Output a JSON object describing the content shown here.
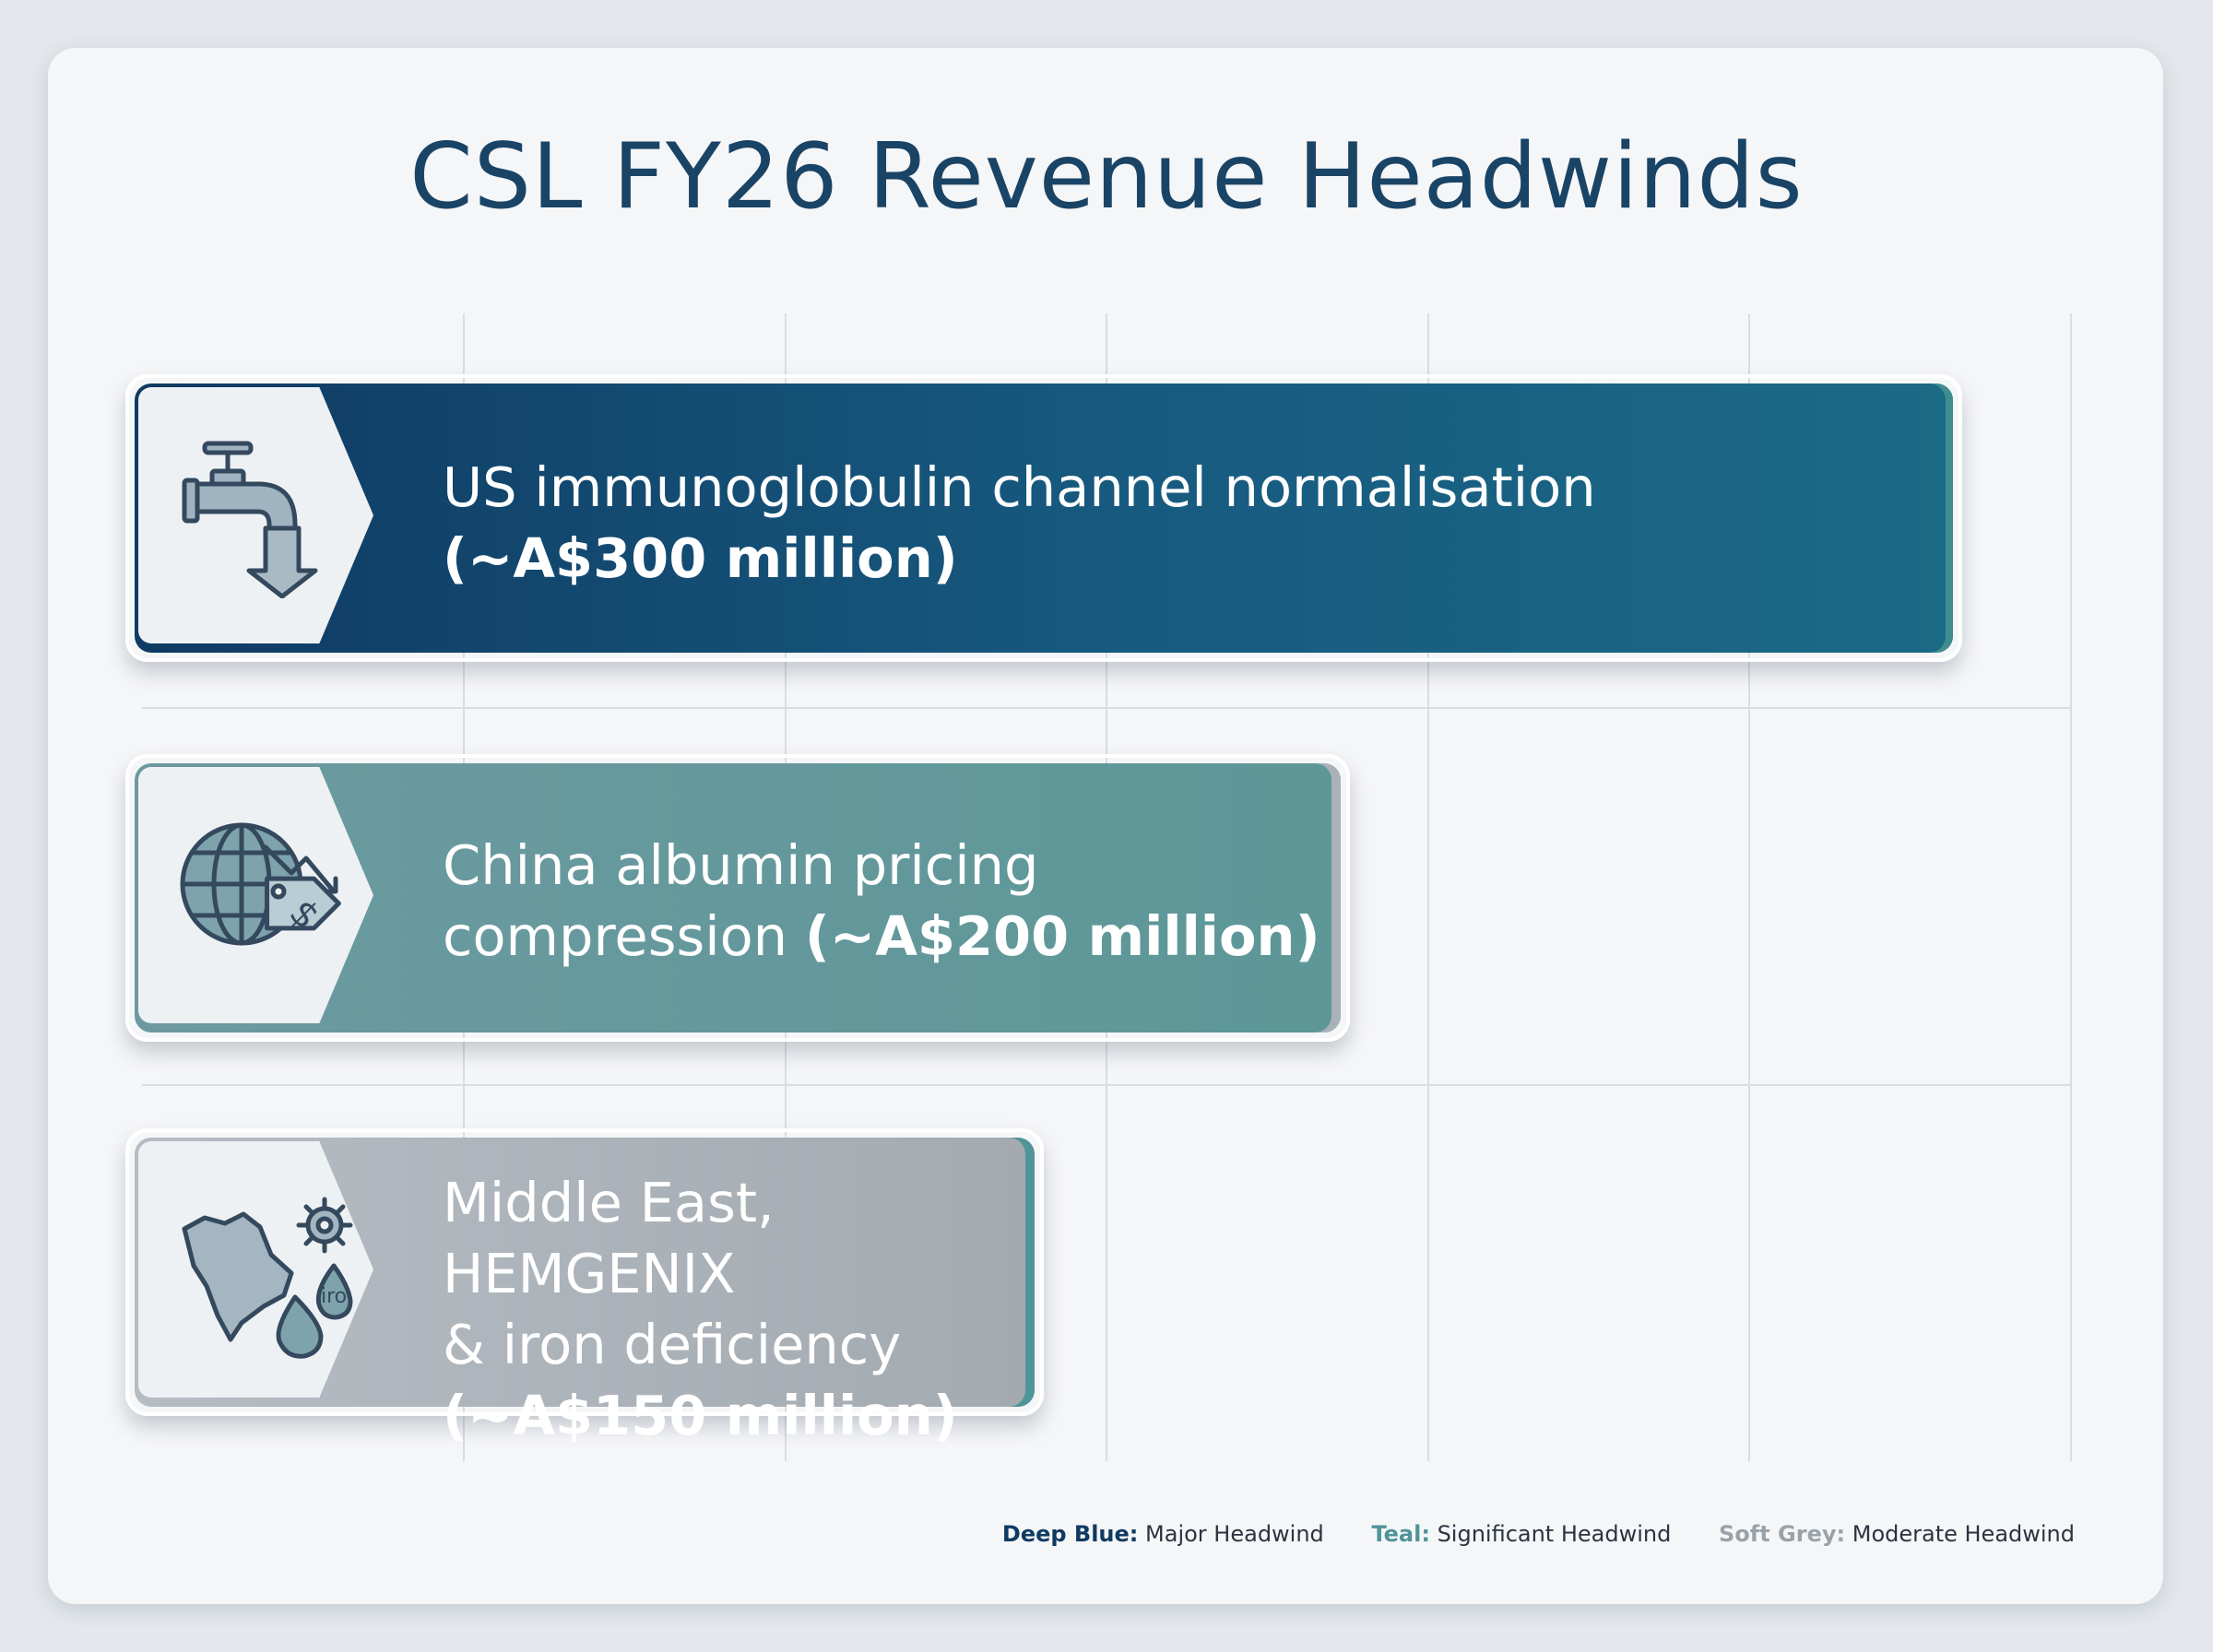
{
  "title": "CSL FY26 Revenue Headwinds",
  "chart_data": {
    "type": "bar",
    "orientation": "horizontal",
    "title": "CSL FY26 Revenue Headwinds",
    "categories": [
      "US immunoglobulin channel normalisation",
      "China albumin pricing compression",
      "Middle East, HEMGENIX & iron deficiency"
    ],
    "values": [
      300,
      200,
      150
    ],
    "value_labels": [
      "(~A$300 million)",
      "(~A$200 million)",
      "(~A$150 million)"
    ],
    "unit": "A$ million",
    "grid": true,
    "legend_position": "bottom-right"
  },
  "bars": [
    {
      "text_lines": [
        "US immunoglobulin channel normalisation"
      ],
      "amount": "(~A$300 million)",
      "amount_inline": false,
      "icon": "faucet-down-arrow-icon",
      "tier_color": "#0f3a62"
    },
    {
      "text_lines": [
        "China albumin pricing",
        "compression "
      ],
      "amount": "(~A$200 million)",
      "amount_inline": true,
      "icon": "globe-price-tag-icon",
      "tier_color": "#5d9798"
    },
    {
      "text_lines": [
        "Middle East, HEMGENIX",
        "& iron deficiency"
      ],
      "amount": "(~A$150 million)",
      "amount_inline": false,
      "icon": "map-gear-drop-icon",
      "tier_color": "#a3aab0"
    }
  ],
  "legend": [
    {
      "key": "Deep Blue:",
      "label": "Major Headwind",
      "color": "#0f3a62"
    },
    {
      "key": "Teal:",
      "label": "Significant Headwind",
      "color": "#4f9498"
    },
    {
      "key": "Soft Grey:",
      "label": "Moderate Headwind",
      "color": "#9aa2a9"
    }
  ],
  "icons": [
    "faucet-down-arrow-icon",
    "globe-price-tag-icon",
    "map-gear-drop-icon"
  ],
  "icon_text": "iro"
}
